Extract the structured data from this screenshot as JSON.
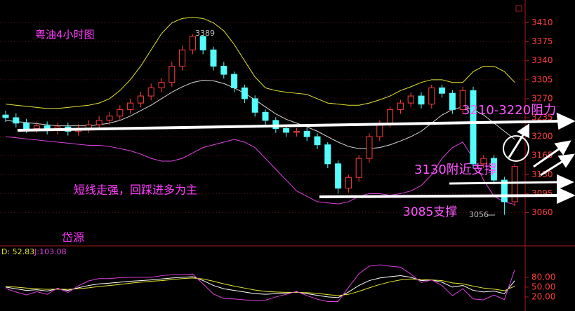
{
  "chart_data": [
    {
      "type": "candlestick",
      "open": [
        3240,
        3235,
        3225,
        3215,
        3220,
        3212,
        3218,
        3210,
        3215,
        3222,
        3230,
        3238,
        3250,
        3262,
        3275,
        3290,
        3300,
        3330,
        3360,
        3385,
        3360,
        3330,
        3315,
        3290,
        3270,
        3245,
        3230,
        3215,
        3208,
        3210,
        3200,
        3185,
        3150,
        3105,
        3125,
        3160,
        3200,
        3225,
        3250,
        3262,
        3275,
        3260,
        3290,
        3280,
        3250,
        3285,
        3150,
        3160,
        3120,
        3080
      ],
      "high": [
        3248,
        3243,
        3233,
        3228,
        3228,
        3226,
        3226,
        3223,
        3230,
        3238,
        3246,
        3258,
        3270,
        3283,
        3298,
        3308,
        3338,
        3368,
        3389,
        3387,
        3366,
        3338,
        3320,
        3296,
        3276,
        3250,
        3236,
        3221,
        3216,
        3216,
        3206,
        3190,
        3156,
        3130,
        3166,
        3206,
        3230,
        3256,
        3268,
        3282,
        3282,
        3296,
        3296,
        3286,
        3292,
        3292,
        3166,
        3166,
        3126,
        3150
      ],
      "low": [
        3227,
        3217,
        3207,
        3207,
        3204,
        3204,
        3202,
        3202,
        3207,
        3214,
        3222,
        3230,
        3242,
        3254,
        3267,
        3282,
        3292,
        3322,
        3352,
        3352,
        3322,
        3307,
        3282,
        3262,
        3237,
        3222,
        3207,
        3200,
        3200,
        3192,
        3177,
        3142,
        3095,
        3097,
        3117,
        3152,
        3192,
        3217,
        3242,
        3254,
        3252,
        3252,
        3272,
        3242,
        3242,
        3142,
        3142,
        3112,
        3056,
        3072
      ],
      "close": [
        3235,
        3225,
        3215,
        3220,
        3212,
        3218,
        3210,
        3215,
        3222,
        3230,
        3238,
        3250,
        3262,
        3275,
        3290,
        3300,
        3330,
        3360,
        3385,
        3360,
        3330,
        3315,
        3290,
        3270,
        3245,
        3230,
        3215,
        3208,
        3210,
        3200,
        3185,
        3150,
        3105,
        3125,
        3160,
        3200,
        3225,
        3250,
        3262,
        3275,
        3260,
        3290,
        3280,
        3250,
        3285,
        3150,
        3160,
        3120,
        3080,
        3145
      ],
      "up_color": "#ff3c3c",
      "down_color": "#54fcfc",
      "lines": [
        {
          "color": "#e6e632",
          "values": [
            3260,
            3258,
            3256,
            3254,
            3252,
            3252,
            3254,
            3256,
            3258,
            3262,
            3270,
            3285,
            3305,
            3330,
            3360,
            3390,
            3410,
            3418,
            3420,
            3418,
            3410,
            3395,
            3370,
            3340,
            3310,
            3290,
            3285,
            3282,
            3280,
            3278,
            3270,
            3262,
            3260,
            3258,
            3258,
            3262,
            3268,
            3275,
            3285,
            3292,
            3300,
            3305,
            3305,
            3300,
            3300,
            3320,
            3330,
            3330,
            3320,
            3300
          ]
        },
        {
          "color": "#d8d8d8",
          "values": [
            3230,
            3228,
            3226,
            3224,
            3222,
            3220,
            3220,
            3220,
            3220,
            3222,
            3225,
            3230,
            3238,
            3248,
            3258,
            3270,
            3282,
            3292,
            3300,
            3304,
            3303,
            3298,
            3290,
            3280,
            3268,
            3255,
            3242,
            3232,
            3225,
            3218,
            3210,
            3200,
            3190,
            3182,
            3178,
            3178,
            3180,
            3185,
            3192,
            3200,
            3210,
            3225,
            3240,
            3250,
            3255,
            3250,
            3240,
            3225,
            3210,
            3195
          ]
        },
        {
          "color": "#e040e0",
          "values": [
            3200,
            3198,
            3196,
            3194,
            3192,
            3190,
            3188,
            3186,
            3184,
            3184,
            3182,
            3178,
            3174,
            3168,
            3160,
            3155,
            3155,
            3160,
            3170,
            3180,
            3185,
            3190,
            3195,
            3190,
            3180,
            3160,
            3140,
            3120,
            3100,
            3090,
            3080,
            3078,
            3076,
            3080,
            3090,
            3095,
            3095,
            3092,
            3095,
            3100,
            3110,
            3130,
            3160,
            3180,
            3190,
            3160,
            3120,
            3090,
            3080,
            3075
          ]
        }
      ],
      "ylim": [
        3000,
        3452
      ],
      "yticks": [
        3060,
        3095,
        3130,
        3165,
        3200,
        3235,
        3270,
        3305,
        3340,
        3375,
        3410
      ],
      "grid": true,
      "annotations": [
        "粤油4小时图",
        "3389",
        "3210-3220阻力",
        "3130附近支撑",
        "3085支撑",
        "3056",
        "短线走强，回踩进多为主",
        "岱源"
      ]
    },
    {
      "type": "line",
      "series": [
        {
          "color": "#ffffff",
          "values": [
            50,
            45,
            40,
            42,
            38,
            45,
            40,
            48,
            55,
            60,
            62,
            65,
            68,
            70,
            72,
            75,
            78,
            80,
            82,
            70,
            55,
            45,
            40,
            35,
            30,
            28,
            30,
            32,
            35,
            30,
            25,
            20,
            18,
            35,
            55,
            70,
            78,
            82,
            85,
            80,
            70,
            72,
            65,
            50,
            55,
            40,
            35,
            38,
            30,
            69.58
          ]
        },
        {
          "label": "D: 52.83",
          "color": "#e6e632",
          "values": [
            52,
            50,
            47,
            45,
            43,
            44,
            43,
            45,
            48,
            52,
            55,
            58,
            62,
            65,
            68,
            70,
            73,
            76,
            78,
            75,
            68,
            60,
            53,
            47,
            41,
            37,
            35,
            34,
            34,
            33,
            31,
            27,
            24,
            28,
            37,
            48,
            58,
            66,
            72,
            75,
            73,
            72,
            70,
            63,
            60,
            53,
            47,
            44,
            39,
            52.83
          ]
        },
        {
          "label": "J:103.08",
          "color": "#e040e0",
          "values": [
            46,
            35,
            26,
            36,
            28,
            47,
            34,
            54,
            69,
            76,
            76,
            79,
            80,
            80,
            80,
            85,
            88,
            88,
            90,
            60,
            29,
            15,
            14,
            11,
            8,
            10,
            20,
            28,
            37,
            24,
            13,
            6,
            6,
            49,
            91,
            114,
            118,
            114,
            111,
            90,
            64,
            72,
            55,
            24,
            45,
            14,
            11,
            26,
            12,
            103.08
          ]
        }
      ],
      "ylim": [
        -23,
        174
      ],
      "yticks": [
        {
          "value": 20,
          "label": "20.00"
        },
        {
          "value": 50,
          "label": "50.00"
        },
        {
          "value": 80,
          "label": "80.00"
        }
      ]
    }
  ]
}
